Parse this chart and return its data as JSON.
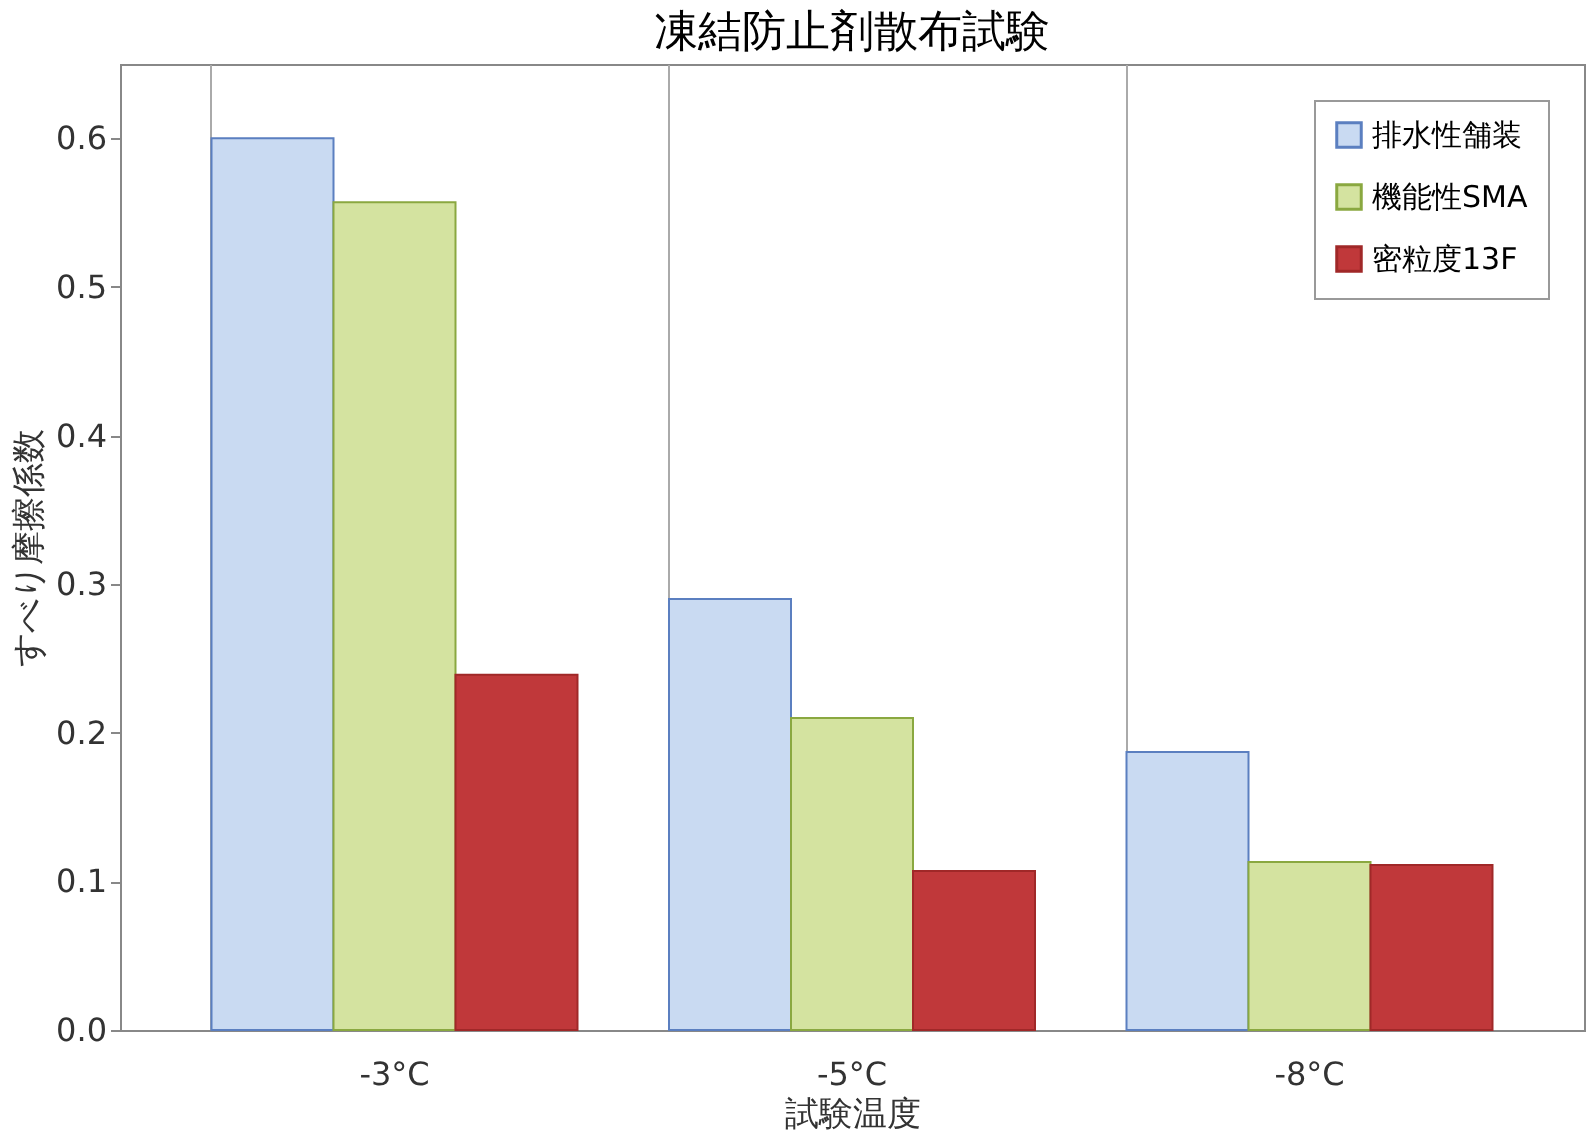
{
  "chart_data": {
    "type": "bar",
    "title": "凍結防止剤散布試験",
    "xlabel": "試験温度",
    "ylabel": "すべり摩擦係数",
    "categories": [
      "-3°C",
      "-5°C",
      "-8°C"
    ],
    "series": [
      {
        "name": "排水性舗装",
        "color": "#c9daf2",
        "values": [
          0.6,
          0.29,
          0.187
        ]
      },
      {
        "name": "機能性SMA",
        "color": "#d4e3a0",
        "values": [
          0.557,
          0.21,
          0.113
        ]
      },
      {
        "name": "密粒度13F",
        "color": "#c0383a",
        "values": [
          0.239,
          0.107,
          0.111
        ]
      }
    ],
    "ylim": [
      0,
      0.65
    ],
    "yticks": [
      {
        "value": 0,
        "label": "0.0"
      },
      0.1,
      0.2,
      0.3,
      0.4,
      0.5,
      0.6
    ],
    "grid": false,
    "legend": "top right"
  }
}
